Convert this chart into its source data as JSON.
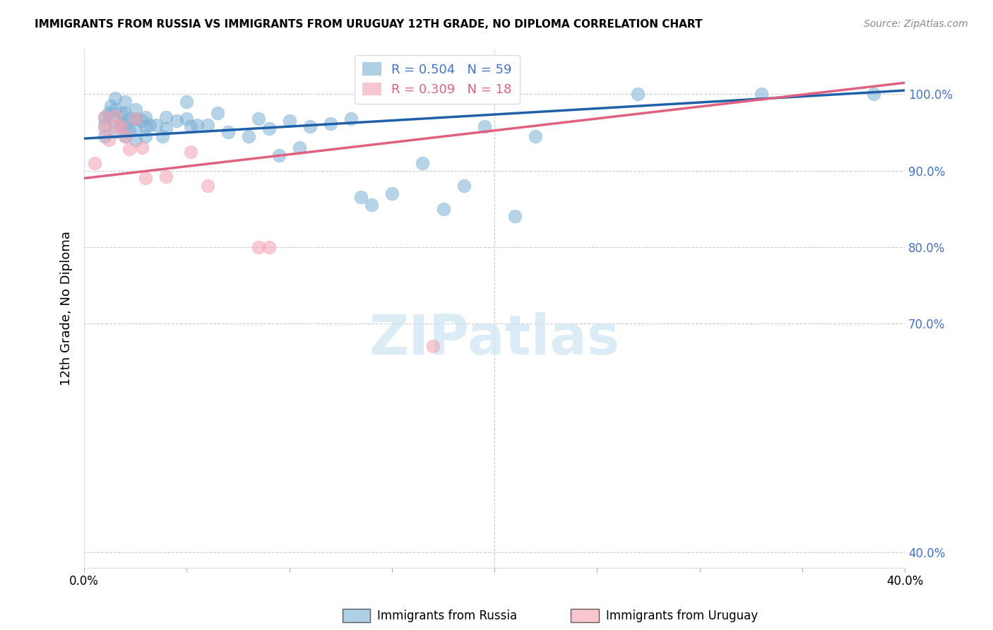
{
  "title": "IMMIGRANTS FROM RUSSIA VS IMMIGRANTS FROM URUGUAY 12TH GRADE, NO DIPLOMA CORRELATION CHART",
  "source": "Source: ZipAtlas.com",
  "ylabel": "12th Grade, No Diploma",
  "xlim": [
    0.0,
    0.4
  ],
  "ylim": [
    0.38,
    1.06
  ],
  "ytick_positions": [
    0.4,
    0.7,
    0.8,
    0.9,
    1.0
  ],
  "ytick_labels": [
    "40.0%",
    "70.0%",
    "80.0%",
    "90.0%",
    "100.0%"
  ],
  "russia_color": "#7bafd4",
  "uruguay_color": "#f4a0b0",
  "russia_line_color": "#2060a8",
  "uruguay_line_color": "#e06080",
  "R_russia": 0.504,
  "N_russia": 59,
  "R_uruguay": 0.309,
  "N_uruguay": 18,
  "legend_label_russia": "Immigrants from Russia",
  "legend_label_uruguay": "Immigrants from Uruguay",
  "russia_x": [
    0.01,
    0.01,
    0.01,
    0.012,
    0.013,
    0.015,
    0.015,
    0.015,
    0.015,
    0.018,
    0.018,
    0.02,
    0.02,
    0.02,
    0.02,
    0.022,
    0.022,
    0.025,
    0.025,
    0.025,
    0.025,
    0.028,
    0.03,
    0.03,
    0.03,
    0.032,
    0.035,
    0.038,
    0.04,
    0.04,
    0.045,
    0.05,
    0.05,
    0.052,
    0.055,
    0.06,
    0.065,
    0.07,
    0.08,
    0.085,
    0.09,
    0.095,
    0.1,
    0.105,
    0.11,
    0.12,
    0.13,
    0.135,
    0.14,
    0.15,
    0.165,
    0.175,
    0.185,
    0.195,
    0.21,
    0.22,
    0.27,
    0.33,
    0.385
  ],
  "russia_y": [
    0.97,
    0.96,
    0.945,
    0.975,
    0.985,
    0.995,
    0.98,
    0.965,
    0.95,
    0.975,
    0.96,
    0.99,
    0.975,
    0.96,
    0.945,
    0.968,
    0.952,
    0.98,
    0.968,
    0.955,
    0.94,
    0.965,
    0.97,
    0.958,
    0.945,
    0.96,
    0.96,
    0.945,
    0.97,
    0.955,
    0.965,
    0.99,
    0.968,
    0.958,
    0.96,
    0.96,
    0.975,
    0.95,
    0.945,
    0.968,
    0.955,
    0.92,
    0.965,
    0.93,
    0.958,
    0.962,
    0.968,
    0.865,
    0.855,
    0.87,
    0.91,
    0.85,
    0.88,
    0.958,
    0.84,
    0.945,
    1.0,
    1.0,
    1.0
  ],
  "uruguay_x": [
    0.005,
    0.01,
    0.01,
    0.012,
    0.015,
    0.015,
    0.018,
    0.02,
    0.022,
    0.025,
    0.028,
    0.03,
    0.04,
    0.052,
    0.06,
    0.085,
    0.09,
    0.17
  ],
  "uruguay_y": [
    0.91,
    0.97,
    0.955,
    0.94,
    0.972,
    0.958,
    0.958,
    0.945,
    0.928,
    0.968,
    0.93,
    0.89,
    0.892,
    0.925,
    0.88,
    0.8,
    0.8,
    0.67
  ],
  "russia_line": [
    0.0,
    0.4,
    0.942,
    1.005
  ],
  "uruguay_line": [
    0.0,
    0.4,
    0.89,
    1.015
  ]
}
